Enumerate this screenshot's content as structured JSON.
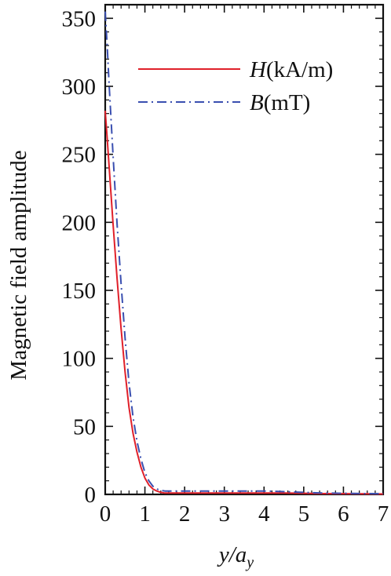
{
  "chart_data": {
    "type": "line",
    "title": "",
    "ylabel": "Magnetic field amplitude",
    "xlabel": {
      "base": "y/a",
      "sub": "y"
    },
    "xlim": [
      0,
      7
    ],
    "ylim": [
      0,
      360
    ],
    "x_ticks": [
      0,
      1,
      2,
      3,
      4,
      5,
      6,
      7
    ],
    "y_ticks": [
      0,
      50,
      100,
      150,
      200,
      250,
      300,
      350
    ],
    "grid": false,
    "legend_position": "top-right",
    "series": [
      {
        "name": "H(kA/m)",
        "legend_italic": "H",
        "legend_rest": "(kA/m)",
        "color": "#e0202a",
        "style": "solid",
        "x": [
          0,
          0.05,
          0.1,
          0.2,
          0.3,
          0.4,
          0.5,
          0.6,
          0.7,
          0.8,
          0.9,
          1.0,
          1.1,
          1.2,
          1.3,
          1.4,
          1.5,
          1.6,
          1.8,
          2.0,
          2.5,
          3.0,
          3.5,
          4.0,
          4.5,
          5.0,
          5.5,
          6.0,
          6.5,
          7.0
        ],
        "y": [
          282,
          262,
          240,
          198,
          158,
          122,
          90,
          64,
          45,
          31,
          20,
          12,
          7,
          4,
          2.5,
          1.5,
          1,
          1,
          1,
          1,
          1,
          1,
          1,
          1,
          1,
          0.8,
          0.6,
          0.5,
          0.4,
          0.3
        ]
      },
      {
        "name": "B(mT)",
        "legend_italic": "B",
        "legend_rest": "(mT)",
        "color": "#3a4fb0",
        "style": "dashdot",
        "x": [
          0,
          0.05,
          0.1,
          0.2,
          0.3,
          0.4,
          0.5,
          0.6,
          0.7,
          0.8,
          0.9,
          1.0,
          1.1,
          1.2,
          1.3,
          1.4,
          1.5,
          1.6,
          1.8,
          2.0,
          2.5,
          3.0,
          3.5,
          4.0,
          4.5,
          5.0,
          5.5,
          6.0,
          6.5,
          7.0
        ],
        "y": [
          355,
          330,
          300,
          248,
          198,
          155,
          115,
          82,
          57,
          39,
          26,
          16,
          10,
          6,
          4,
          3,
          2.5,
          2.5,
          2.5,
          2.5,
          2.5,
          2.5,
          2.5,
          2.5,
          2,
          1.5,
          1,
          0.8,
          0.6,
          0.5
        ]
      }
    ]
  }
}
